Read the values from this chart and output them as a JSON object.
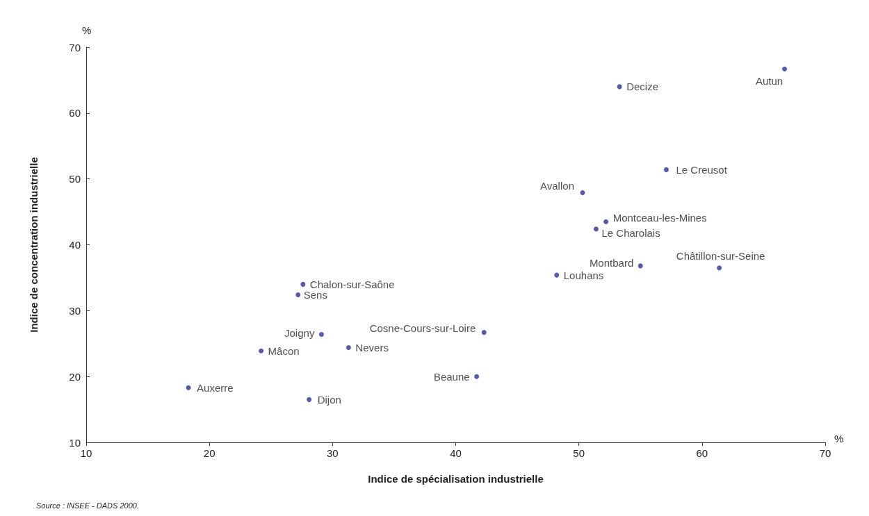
{
  "chart_data": {
    "type": "scatter",
    "xlabel": "Indice de spécialisation industrielle",
    "ylabel": "Indice de concentration industrielle",
    "x": [
      66.7,
      53.3,
      57.1,
      50.3,
      52.2,
      51.4,
      55.0,
      61.4,
      48.2,
      27.6,
      27.2,
      29.1,
      42.3,
      24.2,
      31.3,
      41.7,
      18.3,
      28.1
    ],
    "values": [
      66.7,
      64.0,
      51.4,
      47.9,
      43.5,
      42.4,
      36.8,
      36.5,
      35.4,
      34.0,
      32.4,
      26.4,
      26.7,
      23.9,
      24.4,
      20.0,
      18.3,
      16.5
    ],
    "color": "#2e3192",
    "marker": "circle",
    "grid": false,
    "xlim": [
      10,
      70
    ],
    "xticks": [
      10,
      20,
      30,
      40,
      50,
      60,
      70
    ],
    "ylim": [
      10,
      70
    ],
    "yticks": [
      10,
      20,
      30,
      40,
      50,
      60,
      70
    ],
    "annotations": [
      {
        "text": "Autun",
        "x": 66.7,
        "y": 66.7
      },
      {
        "text": "Decize",
        "x": 53.3,
        "y": 64.0
      },
      {
        "text": "Le Creusot",
        "x": 57.1,
        "y": 51.4
      },
      {
        "text": "Avallon",
        "x": 50.3,
        "y": 47.9
      },
      {
        "text": "Montceau-les-Mines",
        "x": 52.2,
        "y": 43.5
      },
      {
        "text": "Le Charolais",
        "x": 51.4,
        "y": 42.4
      },
      {
        "text": "Montbard",
        "x": 55.0,
        "y": 36.8
      },
      {
        "text": "Châtillon-sur-Seine",
        "x": 61.4,
        "y": 36.5
      },
      {
        "text": "Louhans",
        "x": 48.2,
        "y": 35.4
      },
      {
        "text": "Chalon-sur-Saône",
        "x": 27.6,
        "y": 34.0
      },
      {
        "text": "Sens",
        "x": 27.2,
        "y": 32.4
      },
      {
        "text": "Joigny",
        "x": 29.1,
        "y": 26.4
      },
      {
        "text": "Cosne-Cours-sur-Loire",
        "x": 42.3,
        "y": 26.7
      },
      {
        "text": "Mâcon",
        "x": 24.2,
        "y": 23.9
      },
      {
        "text": "Nevers",
        "x": 31.3,
        "y": 24.4
      },
      {
        "text": "Beaune",
        "x": 41.7,
        "y": 20.0
      },
      {
        "text": "Auxerre",
        "x": 18.3,
        "y": 18.3
      },
      {
        "text": "Dijon",
        "x": 28.1,
        "y": 16.5
      },
      "%",
      "%",
      "Source : INSEE - DADS 2000."
    ]
  }
}
